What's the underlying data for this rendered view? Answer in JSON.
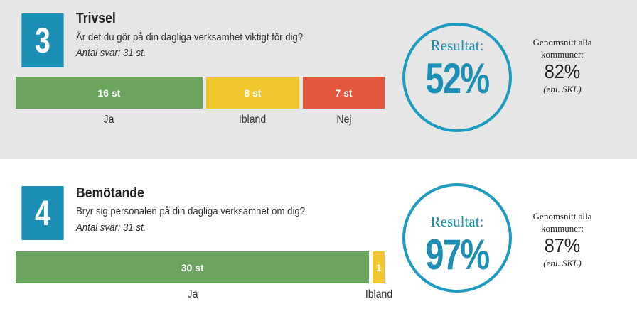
{
  "colors": {
    "accent": "#1d8eb5",
    "ja": "#6aa45e",
    "ibland": "#f0c82d",
    "nej": "#e1583f",
    "section_bg": "#e6e6e6"
  },
  "sections": [
    {
      "number": "3",
      "title": "Trivsel",
      "question": "Är det du gör på din dagliga verksamhet viktigt för dig?",
      "count": "Antal svar: 31 st.",
      "segments": [
        {
          "value": 16,
          "bar_label": "16 st",
          "label": "Ja",
          "color": "#6aa45e"
        },
        {
          "value": 8,
          "bar_label": "8 st",
          "label": "Ibland",
          "color": "#f0c82d"
        },
        {
          "value": 7,
          "bar_label": "7 st",
          "label": "Nej",
          "color": "#e1583f"
        }
      ],
      "result_label": "Resultat:",
      "result_value": "52%",
      "avg_label": "Genomsnitt alla kommuner:",
      "avg_value": "82%",
      "avg_source": "(enl. SKL)"
    },
    {
      "number": "4",
      "title": "Bemötande",
      "question": "Bryr sig personalen på din dagliga verksamhet om dig?",
      "count": "Antal svar: 31 st.",
      "segments": [
        {
          "value": 30,
          "bar_label": "30 st",
          "label": "Ja",
          "color": "#6aa45e"
        },
        {
          "value": 1,
          "bar_label": "1",
          "label": "Ibland",
          "color": "#f0c82d"
        }
      ],
      "result_label": "Resultat:",
      "result_value": "97%",
      "avg_label": "Genomsnitt alla kommuner:",
      "avg_value": "87%",
      "avg_source": "(enl. SKL)"
    }
  ]
}
